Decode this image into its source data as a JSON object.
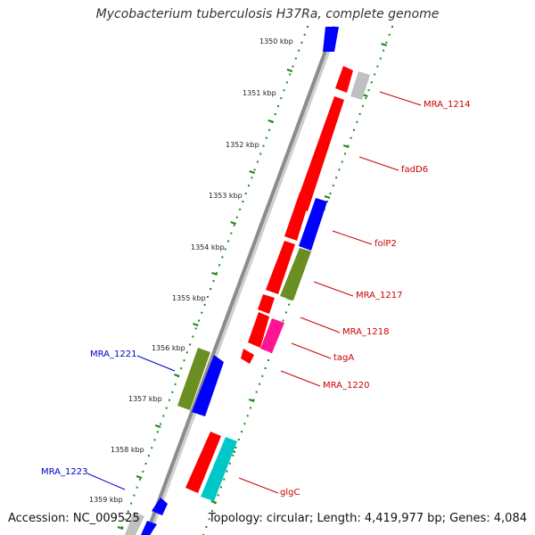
{
  "title": "Mycobacterium tuberculosis H37Ra, complete genome",
  "footer": {
    "accession": "Accession: NC_009525",
    "stats": "Topology: circular; Length: 4,419,977 bp; Genes: 4,084"
  },
  "colors": {
    "backbone": "#8c8c8c",
    "ticks": "#1a8a1a",
    "forward_gene": "#ff0000",
    "reverse_gene": "#0000ff",
    "olive_gene": "#6b8e23",
    "pink_gene": "#ff1493",
    "cyan_gene": "#00c8c8",
    "grey_gene": "#c0c0c0",
    "forward_label": "#cc0000",
    "reverse_label": "#0000cc"
  },
  "scale": {
    "ticks": [
      "1350 kbp",
      "1351 kbp",
      "1352 kbp",
      "1353 kbp",
      "1354 kbp",
      "1355 kbp",
      "1356 kbp",
      "1357 kbp",
      "1358 kbp",
      "1359 kbp"
    ]
  },
  "gene_labels": {
    "right": [
      "MRA_1214",
      "fadD6",
      "folP2",
      "MRA_1217",
      "MRA_1218",
      "tagA",
      "MRA_1220",
      "glgC"
    ],
    "left": [
      "MRA_1221",
      "MRA_1223"
    ]
  }
}
